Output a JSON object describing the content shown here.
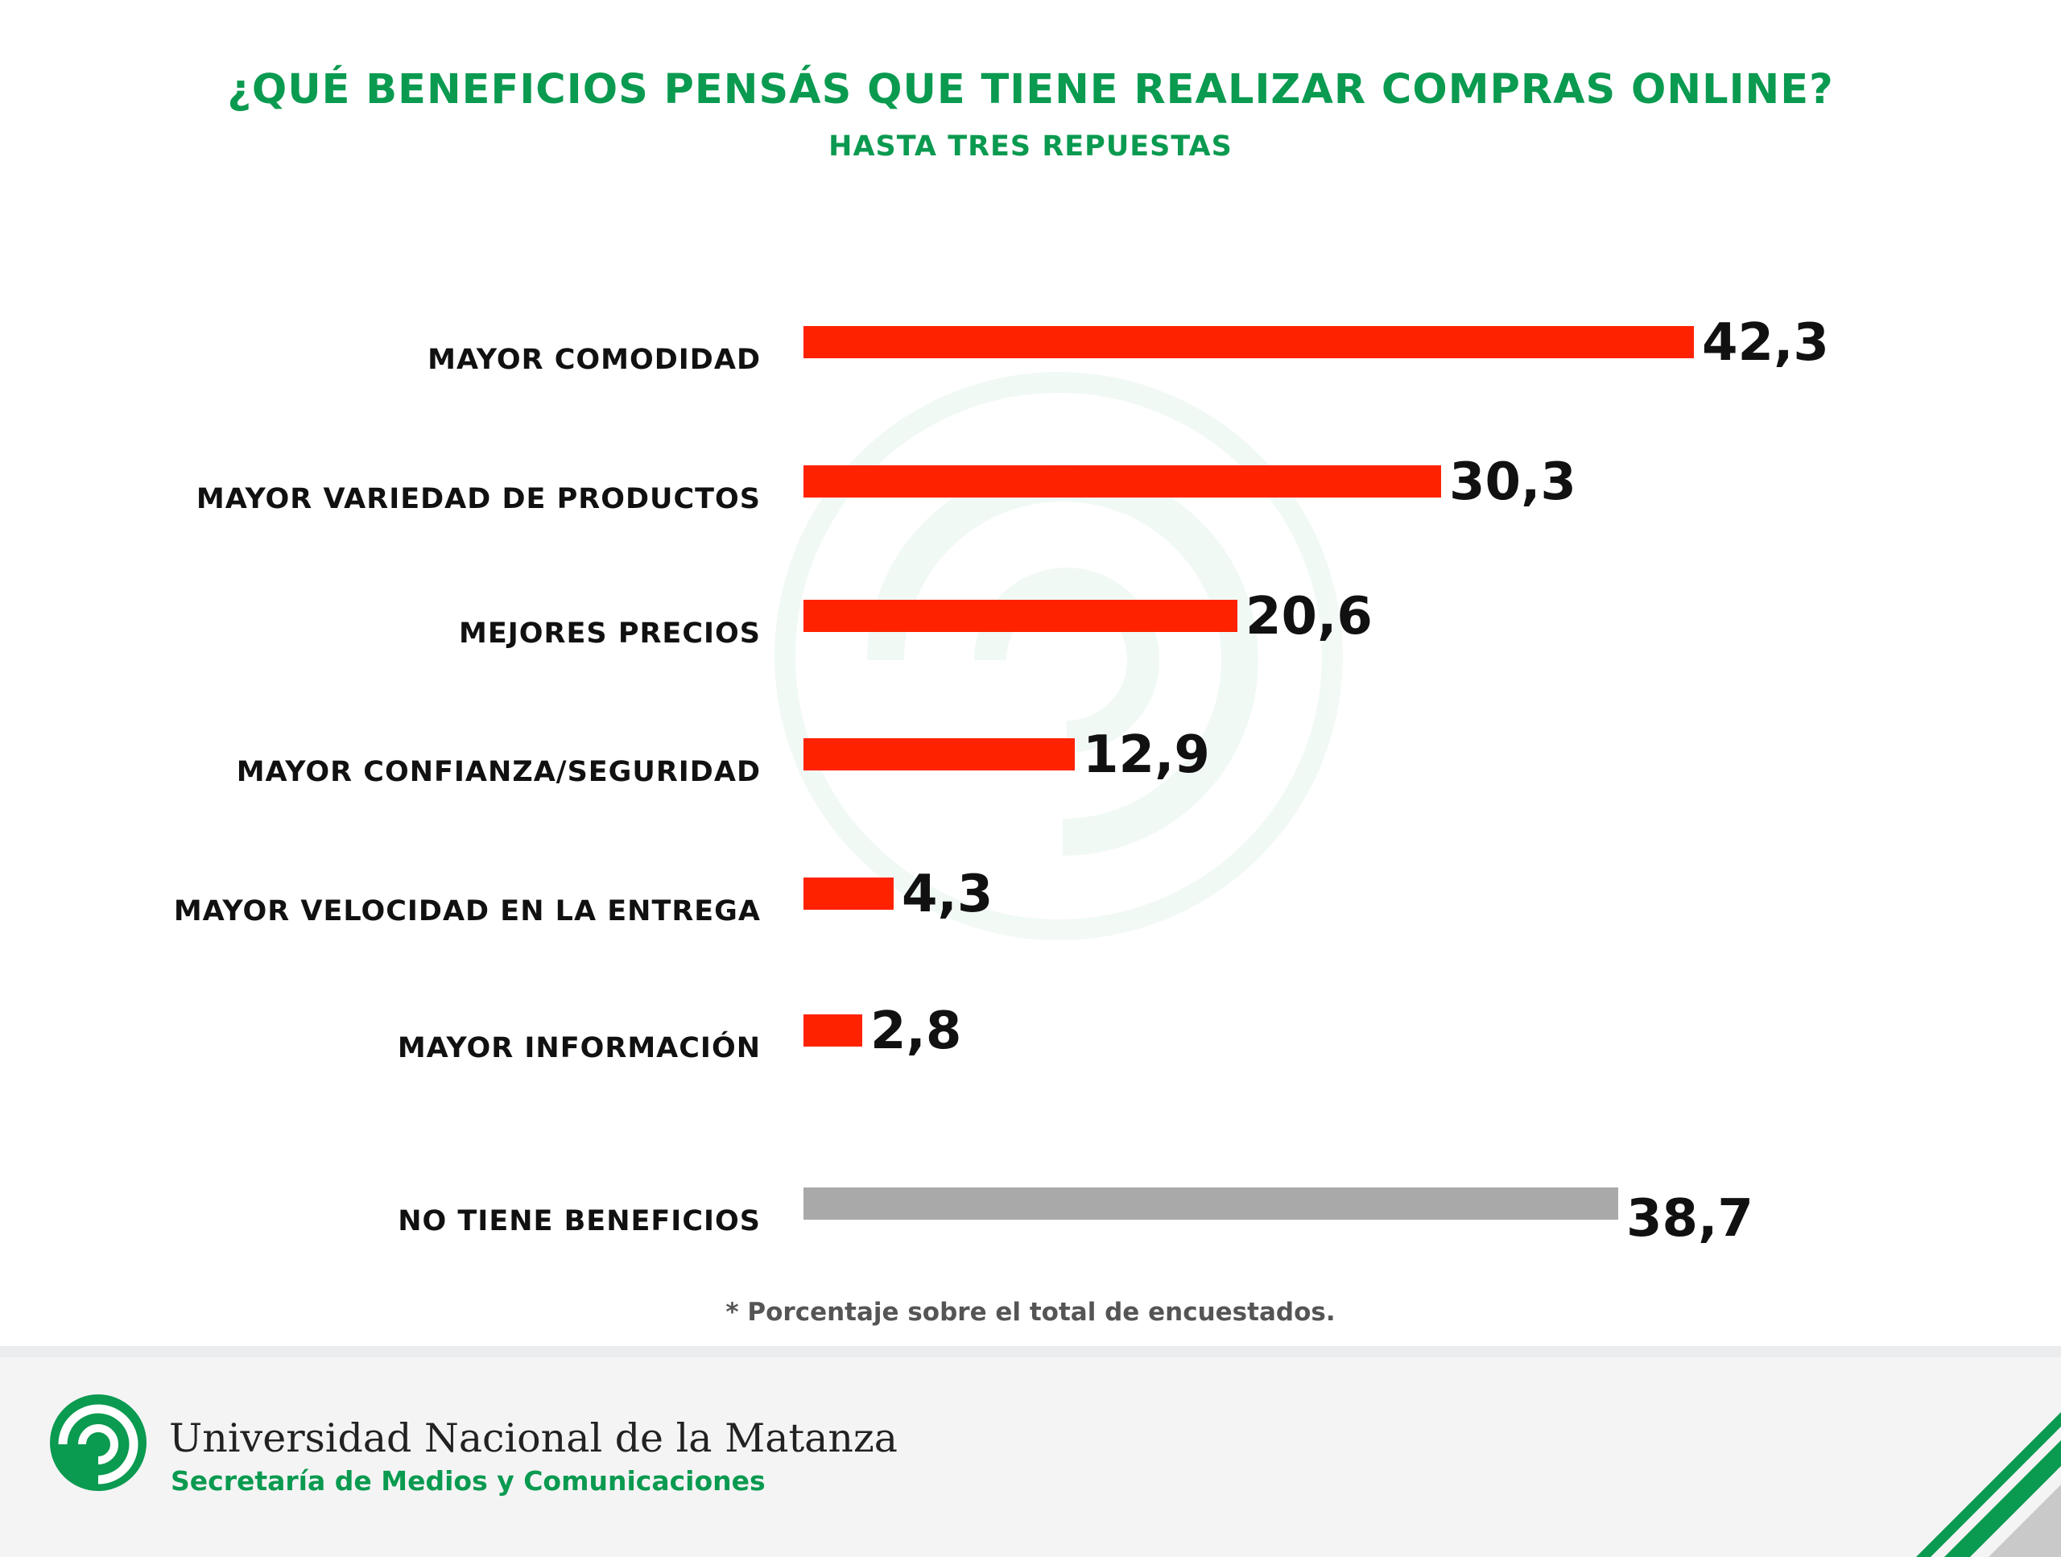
{
  "header": {
    "title": "¿QUÉ BENEFICIOS PENSÁS QUE TIENE REALIZAR COMPRAS ONLINE?",
    "subtitle": "HASTA TRES REPUESTAS"
  },
  "colors": {
    "accent": "#0a9a50",
    "bar_primary": "#ff2200",
    "bar_secondary": "#a9a9a9"
  },
  "chart_data": {
    "type": "bar",
    "orientation": "horizontal",
    "title": "¿QUÉ BENEFICIOS PENSÁS QUE TIENE REALIZAR COMPRAS ONLINE?",
    "subtitle": "HASTA TRES REPUESTAS",
    "xlabel": "",
    "ylabel": "",
    "xlim": [
      0,
      42.3
    ],
    "grid": false,
    "categories": [
      "MAYOR COMODIDAD",
      "MAYOR VARIEDAD DE PRODUCTOS",
      "MEJORES PRECIOS",
      "MAYOR CONFIANZA/SEGURIDAD",
      "MAYOR VELOCIDAD EN LA ENTREGA",
      "MAYOR INFORMACIÓN",
      "NO TIENE BENEFICIOS"
    ],
    "values": [
      42.3,
      30.3,
      20.6,
      12.9,
      4.3,
      2.8,
      38.7
    ],
    "value_labels": [
      "42,3",
      "30,3",
      "20,6",
      "12,9",
      "4,3",
      "2,8",
      "38,7"
    ],
    "bar_colors": [
      "#ff2200",
      "#ff2200",
      "#ff2200",
      "#ff2200",
      "#ff2200",
      "#ff2200",
      "#a9a9a9"
    ]
  },
  "footnote": "* Porcentaje sobre el total de encuestados.",
  "footer": {
    "logo_icon": "unlam-logo-icon",
    "university": "Universidad Nacional de la Matanza",
    "department": "Secretaría de Medios y Comunicaciones"
  }
}
